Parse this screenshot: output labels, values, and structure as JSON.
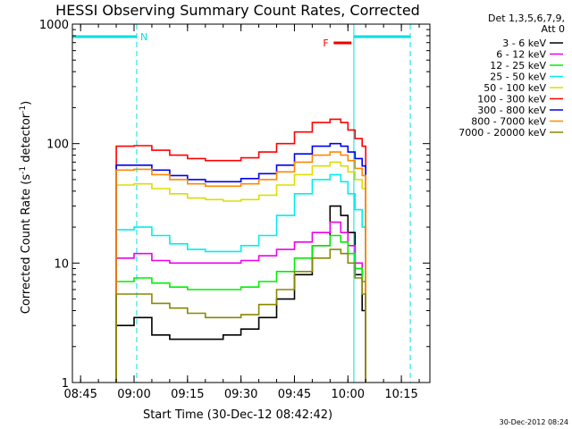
{
  "chart_data": {
    "type": "line",
    "title": "HESSI Observing Summary Count Rates, Corrected",
    "xlabel": "Start Time (30-Dec-12 08:42:42)",
    "ylabel_main": "Corrected Count Rate (s",
    "ylabel_exp1": "-1",
    "ylabel_mid": " detector",
    "ylabel_exp2": "-1",
    "ylabel_end": ")",
    "y_scale": "log",
    "ylim": [
      1,
      1000
    ],
    "xlim": [
      "08:42:42",
      "10:23:00"
    ],
    "x_ticks": [
      "08:45",
      "09:00",
      "09:15",
      "09:30",
      "09:45",
      "10:00",
      "10:15"
    ],
    "y_ticks": [
      {
        "value": 1,
        "label": "1"
      },
      {
        "value": 10,
        "label": "10"
      },
      {
        "value": 100,
        "label": "100"
      },
      {
        "value": 1000,
        "label": "1000"
      }
    ],
    "legend_header": [
      "Det 1,3,5,6,7,9,",
      "Att 0"
    ],
    "legend_placement": "right",
    "series": [
      {
        "name": "3 - 6 keV",
        "color": "#000000",
        "points": [
          [
            "08:55",
            3
          ],
          [
            "09:00",
            3.5
          ],
          [
            "09:05",
            2.5
          ],
          [
            "09:10",
            2.3
          ],
          [
            "09:15",
            2.3
          ],
          [
            "09:20",
            2.3
          ],
          [
            "09:25",
            2.5
          ],
          [
            "09:30",
            2.8
          ],
          [
            "09:35",
            3.5
          ],
          [
            "09:40",
            5
          ],
          [
            "09:45",
            8
          ],
          [
            "09:50",
            14
          ],
          [
            "09:55",
            30
          ],
          [
            "09:58",
            25
          ],
          [
            "10:00",
            18
          ],
          [
            "10:02",
            8
          ],
          [
            "10:04",
            4
          ],
          [
            "10:05",
            2
          ]
        ]
      },
      {
        "name": "6 - 12 keV",
        "color": "#ee00ee",
        "points": [
          [
            "08:55",
            11
          ],
          [
            "09:00",
            12
          ],
          [
            "09:05",
            10.5
          ],
          [
            "09:10",
            10
          ],
          [
            "09:15",
            10
          ],
          [
            "09:20",
            10
          ],
          [
            "09:25",
            10
          ],
          [
            "09:30",
            10.5
          ],
          [
            "09:35",
            11.5
          ],
          [
            "09:40",
            13
          ],
          [
            "09:45",
            15
          ],
          [
            "09:50",
            18
          ],
          [
            "09:55",
            22
          ],
          [
            "09:58",
            18
          ],
          [
            "10:00",
            14
          ],
          [
            "10:02",
            10
          ],
          [
            "10:04",
            7
          ],
          [
            "10:05",
            6
          ]
        ]
      },
      {
        "name": "12 - 25 keV",
        "color": "#00ee00",
        "points": [
          [
            "08:55",
            7
          ],
          [
            "09:00",
            7.5
          ],
          [
            "09:05",
            6.8
          ],
          [
            "09:10",
            6.3
          ],
          [
            "09:15",
            6
          ],
          [
            "09:20",
            6
          ],
          [
            "09:25",
            6
          ],
          [
            "09:30",
            6.3
          ],
          [
            "09:35",
            7
          ],
          [
            "09:40",
            8.5
          ],
          [
            "09:45",
            11
          ],
          [
            "09:50",
            14
          ],
          [
            "09:55",
            17
          ],
          [
            "09:58",
            15
          ],
          [
            "10:00",
            12
          ],
          [
            "10:02",
            9
          ],
          [
            "10:04",
            7
          ],
          [
            "10:05",
            6
          ]
        ]
      },
      {
        "name": "25 - 50 keV",
        "color": "#00eeee",
        "points": [
          [
            "08:55",
            19
          ],
          [
            "09:00",
            20
          ],
          [
            "09:05",
            17
          ],
          [
            "09:10",
            14.5
          ],
          [
            "09:15",
            13
          ],
          [
            "09:20",
            12.5
          ],
          [
            "09:25",
            12.5
          ],
          [
            "09:30",
            14
          ],
          [
            "09:35",
            17
          ],
          [
            "09:40",
            25
          ],
          [
            "09:45",
            38
          ],
          [
            "09:50",
            50
          ],
          [
            "09:55",
            55
          ],
          [
            "09:58",
            48
          ],
          [
            "10:00",
            38
          ],
          [
            "10:02",
            28
          ],
          [
            "10:04",
            20
          ],
          [
            "10:05",
            18
          ]
        ]
      },
      {
        "name": "50 - 100 keV",
        "color": "#dddd00",
        "points": [
          [
            "08:55",
            45
          ],
          [
            "09:00",
            46
          ],
          [
            "09:05",
            42
          ],
          [
            "09:10",
            38
          ],
          [
            "09:15",
            35
          ],
          [
            "09:20",
            34
          ],
          [
            "09:25",
            33
          ],
          [
            "09:30",
            34
          ],
          [
            "09:35",
            37
          ],
          [
            "09:40",
            45
          ],
          [
            "09:45",
            55
          ],
          [
            "09:50",
            65
          ],
          [
            "09:55",
            70
          ],
          [
            "09:58",
            65
          ],
          [
            "10:00",
            58
          ],
          [
            "10:02",
            50
          ],
          [
            "10:04",
            42
          ],
          [
            "10:05",
            38
          ]
        ]
      },
      {
        "name": "100 - 300 keV",
        "color": "#ff0000",
        "points": [
          [
            "08:55",
            95
          ],
          [
            "09:00",
            96
          ],
          [
            "09:05",
            88
          ],
          [
            "09:10",
            80
          ],
          [
            "09:15",
            75
          ],
          [
            "09:20",
            72
          ],
          [
            "09:25",
            72
          ],
          [
            "09:30",
            76
          ],
          [
            "09:35",
            85
          ],
          [
            "09:40",
            100
          ],
          [
            "09:45",
            125
          ],
          [
            "09:50",
            150
          ],
          [
            "09:55",
            160
          ],
          [
            "09:58",
            150
          ],
          [
            "10:00",
            130
          ],
          [
            "10:02",
            110
          ],
          [
            "10:04",
            95
          ],
          [
            "10:05",
            85
          ]
        ]
      },
      {
        "name": "300 - 800 keV",
        "color": "#0000ee",
        "points": [
          [
            "08:55",
            66
          ],
          [
            "09:00",
            66
          ],
          [
            "09:05",
            60
          ],
          [
            "09:10",
            54
          ],
          [
            "09:15",
            50
          ],
          [
            "09:20",
            48
          ],
          [
            "09:25",
            48
          ],
          [
            "09:30",
            51
          ],
          [
            "09:35",
            56
          ],
          [
            "09:40",
            66
          ],
          [
            "09:45",
            82
          ],
          [
            "09:50",
            95
          ],
          [
            "09:55",
            100
          ],
          [
            "09:58",
            95
          ],
          [
            "10:00",
            85
          ],
          [
            "10:02",
            75
          ],
          [
            "10:04",
            65
          ],
          [
            "10:05",
            60
          ]
        ]
      },
      {
        "name": "800 - 7000 keV",
        "color": "#ff8800",
        "points": [
          [
            "08:55",
            60
          ],
          [
            "09:00",
            61
          ],
          [
            "09:05",
            55
          ],
          [
            "09:10",
            50
          ],
          [
            "09:15",
            46
          ],
          [
            "09:20",
            44
          ],
          [
            "09:25",
            44
          ],
          [
            "09:30",
            46
          ],
          [
            "09:35",
            50
          ],
          [
            "09:40",
            58
          ],
          [
            "09:45",
            70
          ],
          [
            "09:50",
            80
          ],
          [
            "09:55",
            85
          ],
          [
            "09:58",
            80
          ],
          [
            "10:00",
            72
          ],
          [
            "10:02",
            62
          ],
          [
            "10:04",
            54
          ],
          [
            "10:05",
            50
          ]
        ]
      },
      {
        "name": "7000 - 20000 keV",
        "color": "#888800",
        "points": [
          [
            "08:55",
            5.5
          ],
          [
            "09:00",
            5.5
          ],
          [
            "09:05",
            4.6
          ],
          [
            "09:10",
            4.2
          ],
          [
            "09:15",
            3.8
          ],
          [
            "09:20",
            3.5
          ],
          [
            "09:25",
            3.5
          ],
          [
            "09:30",
            3.7
          ],
          [
            "09:35",
            4.5
          ],
          [
            "09:40",
            6
          ],
          [
            "09:45",
            8.5
          ],
          [
            "09:50",
            11
          ],
          [
            "09:55",
            13
          ],
          [
            "09:58",
            12
          ],
          [
            "10:00",
            10
          ],
          [
            "10:02",
            7.5
          ],
          [
            "10:04",
            5.5
          ],
          [
            "10:05",
            4.5
          ]
        ]
      }
    ],
    "night_bars": [
      {
        "start": "08:42:42",
        "end": "09:00:45",
        "label": "N"
      },
      {
        "start": "10:01:40",
        "end": "10:17:30",
        "label": ""
      }
    ],
    "flare_bar": {
      "start": "09:56:00",
      "end": "10:01:00",
      "label": "F"
    },
    "dashed_times": [
      "09:00:45",
      "10:17:30"
    ],
    "solid_times": [
      "10:01:40"
    ],
    "timestamp": "30-Dec-2012 08:24"
  }
}
